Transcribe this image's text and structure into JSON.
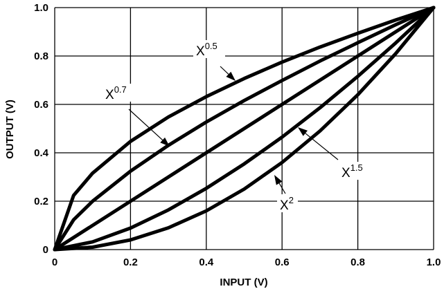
{
  "chart_data": {
    "type": "line",
    "xlabel": "INPUT (V)",
    "ylabel": "OUTPUT (V)",
    "xlim": [
      0,
      1
    ],
    "ylim": [
      0,
      1
    ],
    "x_ticks": [
      "0",
      "0.2",
      "0.4",
      "0.6",
      "0.8",
      "1.0"
    ],
    "y_ticks": [
      "0",
      "0.2",
      "0.4",
      "0.6",
      "0.8",
      "1.0"
    ],
    "grid": true,
    "series": [
      {
        "name": "x^0.5",
        "label_base": "X",
        "label_exp": "0.5",
        "x": [
          0,
          0.05,
          0.1,
          0.2,
          0.3,
          0.4,
          0.5,
          0.6,
          0.7,
          0.8,
          0.9,
          1.0
        ],
        "y": [
          0,
          0.224,
          0.316,
          0.447,
          0.548,
          0.632,
          0.707,
          0.775,
          0.837,
          0.894,
          0.949,
          1.0
        ]
      },
      {
        "name": "x^0.7",
        "label_base": "X",
        "label_exp": "0.7",
        "x": [
          0,
          0.05,
          0.1,
          0.2,
          0.3,
          0.4,
          0.5,
          0.6,
          0.7,
          0.8,
          0.9,
          1.0
        ],
        "y": [
          0,
          0.123,
          0.2,
          0.324,
          0.431,
          0.527,
          0.616,
          0.699,
          0.779,
          0.855,
          0.929,
          1.0
        ]
      },
      {
        "name": "x",
        "x": [
          0,
          1.0
        ],
        "y": [
          0,
          1.0
        ]
      },
      {
        "name": "x^1.5",
        "label_base": "X",
        "label_exp": "1.5",
        "x": [
          0,
          0.1,
          0.2,
          0.3,
          0.4,
          0.5,
          0.6,
          0.7,
          0.8,
          0.9,
          1.0
        ],
        "y": [
          0,
          0.032,
          0.089,
          0.164,
          0.253,
          0.354,
          0.465,
          0.586,
          0.716,
          0.854,
          1.0
        ]
      },
      {
        "name": "x^2",
        "label_base": "X",
        "label_exp": "2",
        "x": [
          0,
          0.1,
          0.2,
          0.3,
          0.4,
          0.5,
          0.6,
          0.7,
          0.8,
          0.9,
          1.0
        ],
        "y": [
          0,
          0.01,
          0.04,
          0.09,
          0.16,
          0.25,
          0.36,
          0.49,
          0.64,
          0.81,
          1.0
        ]
      }
    ]
  }
}
